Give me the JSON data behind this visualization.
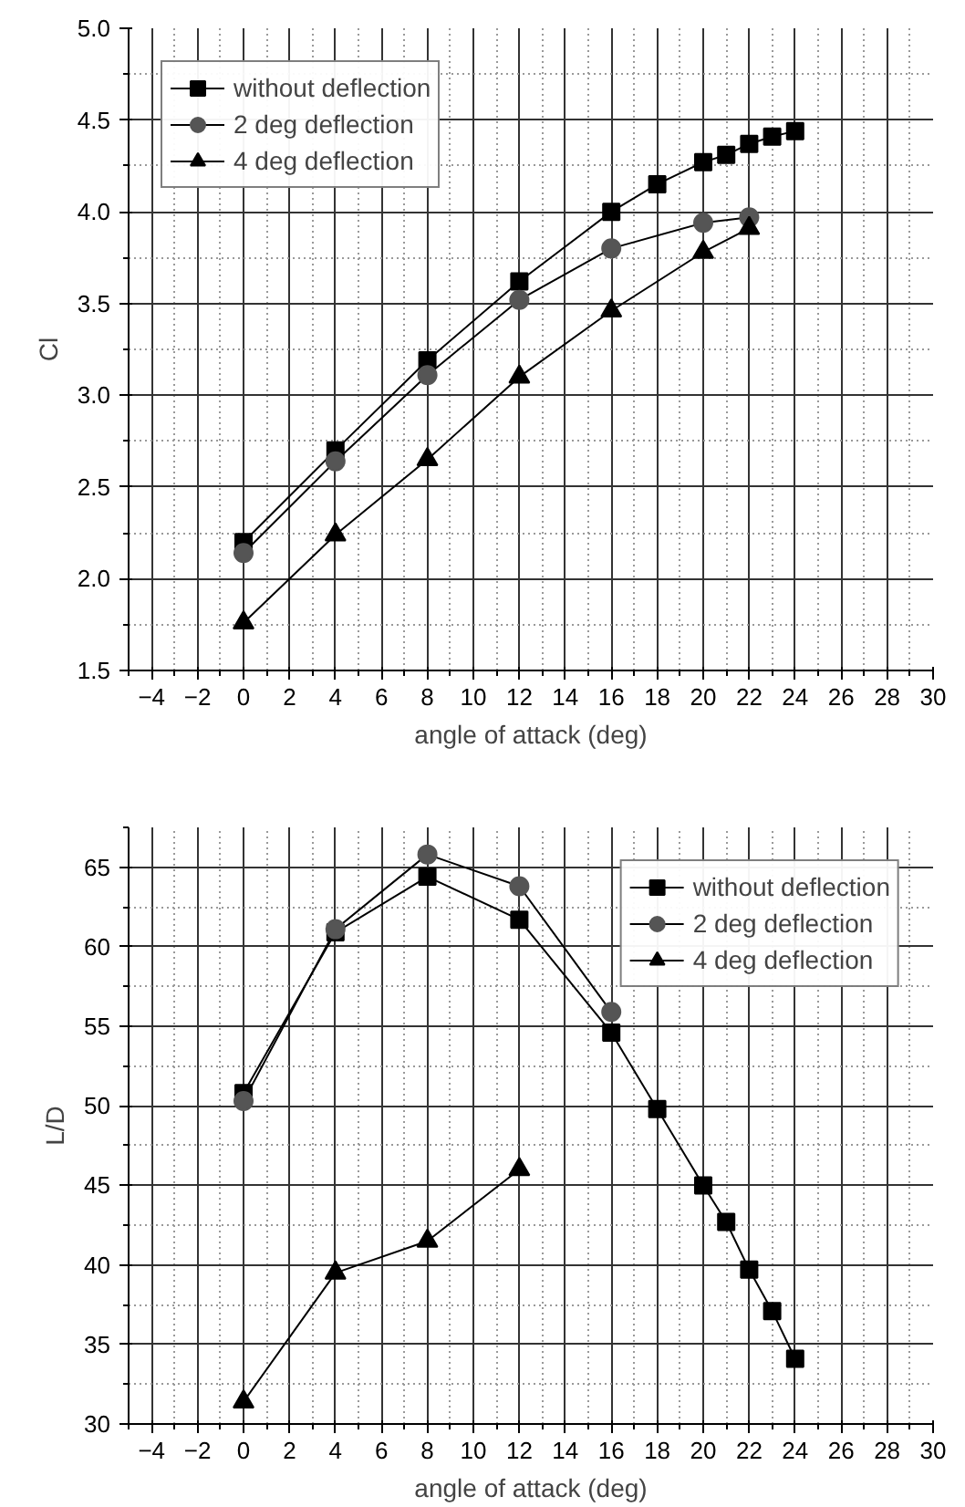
{
  "chart_data": [
    {
      "type": "line",
      "xlabel": "angle of attack (deg)",
      "ylabel": "Cl",
      "xlim": [
        -5,
        30
      ],
      "xticks": [
        -4,
        -2,
        0,
        2,
        4,
        6,
        8,
        10,
        12,
        14,
        16,
        18,
        20,
        22,
        24,
        26,
        28,
        30
      ],
      "ylim": [
        1.5,
        5.0
      ],
      "yticks": [
        {
          "value": 1.5,
          "label": "1.5"
        },
        {
          "value": 2.0,
          "label": "2.0"
        },
        {
          "value": 2.5,
          "label": "2.5"
        },
        {
          "value": 3.0,
          "label": "3.0"
        },
        {
          "value": 3.5,
          "label": "3.5"
        },
        {
          "value": 4.0,
          "label": "4.0"
        },
        {
          "value": 4.5,
          "label": "4.5"
        },
        {
          "value": 5.0,
          "label": "5.0"
        }
      ],
      "grid": true,
      "legend": "top left",
      "line_style": "solid",
      "series": [
        {
          "name": "without deflection",
          "color": "#000000",
          "marker": "square",
          "x": [
            0,
            4,
            8,
            12,
            16,
            18,
            20,
            21,
            22,
            23,
            24
          ],
          "values": [
            2.2,
            2.7,
            3.19,
            3.62,
            4.0,
            4.15,
            4.27,
            4.31,
            4.37,
            4.41,
            4.44
          ]
        },
        {
          "name": "2 deg deflection",
          "color": "#555555",
          "marker": "circle",
          "x": [
            0,
            4,
            8,
            12,
            16,
            20,
            22
          ],
          "values": [
            2.14,
            2.64,
            3.11,
            3.52,
            3.8,
            3.94,
            3.97
          ]
        },
        {
          "name": "4 deg deflection",
          "color": "#000000",
          "marker": "triangle",
          "x": [
            0,
            4,
            8,
            12,
            16,
            20,
            22
          ],
          "values": [
            1.76,
            2.24,
            2.65,
            3.1,
            3.46,
            3.78,
            3.91
          ]
        }
      ]
    },
    {
      "type": "line",
      "xlabel": "angle of attack (deg)",
      "ylabel": "L/D",
      "xlim": [
        -5,
        30
      ],
      "xticks": [
        -4,
        -2,
        0,
        2,
        4,
        6,
        8,
        10,
        12,
        14,
        16,
        18,
        20,
        22,
        24,
        26,
        28,
        30
      ],
      "ylim": [
        30,
        67.5
      ],
      "yticks": [
        30,
        35,
        40,
        45,
        50,
        55,
        60,
        65
      ],
      "grid": true,
      "legend": "top right",
      "line_style": "solid",
      "series": [
        {
          "name": "without deflection",
          "color": "#000000",
          "marker": "square",
          "x": [
            0,
            4,
            8,
            12,
            16,
            18,
            20,
            21,
            22,
            23,
            24
          ],
          "values": [
            50.8,
            60.9,
            64.4,
            61.7,
            54.6,
            49.8,
            45.0,
            42.7,
            39.7,
            37.1,
            34.1
          ]
        },
        {
          "name": "2 deg deflection",
          "color": "#555555",
          "marker": "circle",
          "x": [
            0,
            4,
            8,
            12,
            16
          ],
          "values": [
            50.3,
            61.1,
            65.8,
            63.8,
            55.9
          ]
        },
        {
          "name": "4 deg deflection",
          "color": "#000000",
          "marker": "triangle",
          "x": [
            0,
            4,
            8,
            12
          ],
          "values": [
            31.4,
            39.5,
            41.5,
            46.0
          ]
        }
      ]
    }
  ]
}
